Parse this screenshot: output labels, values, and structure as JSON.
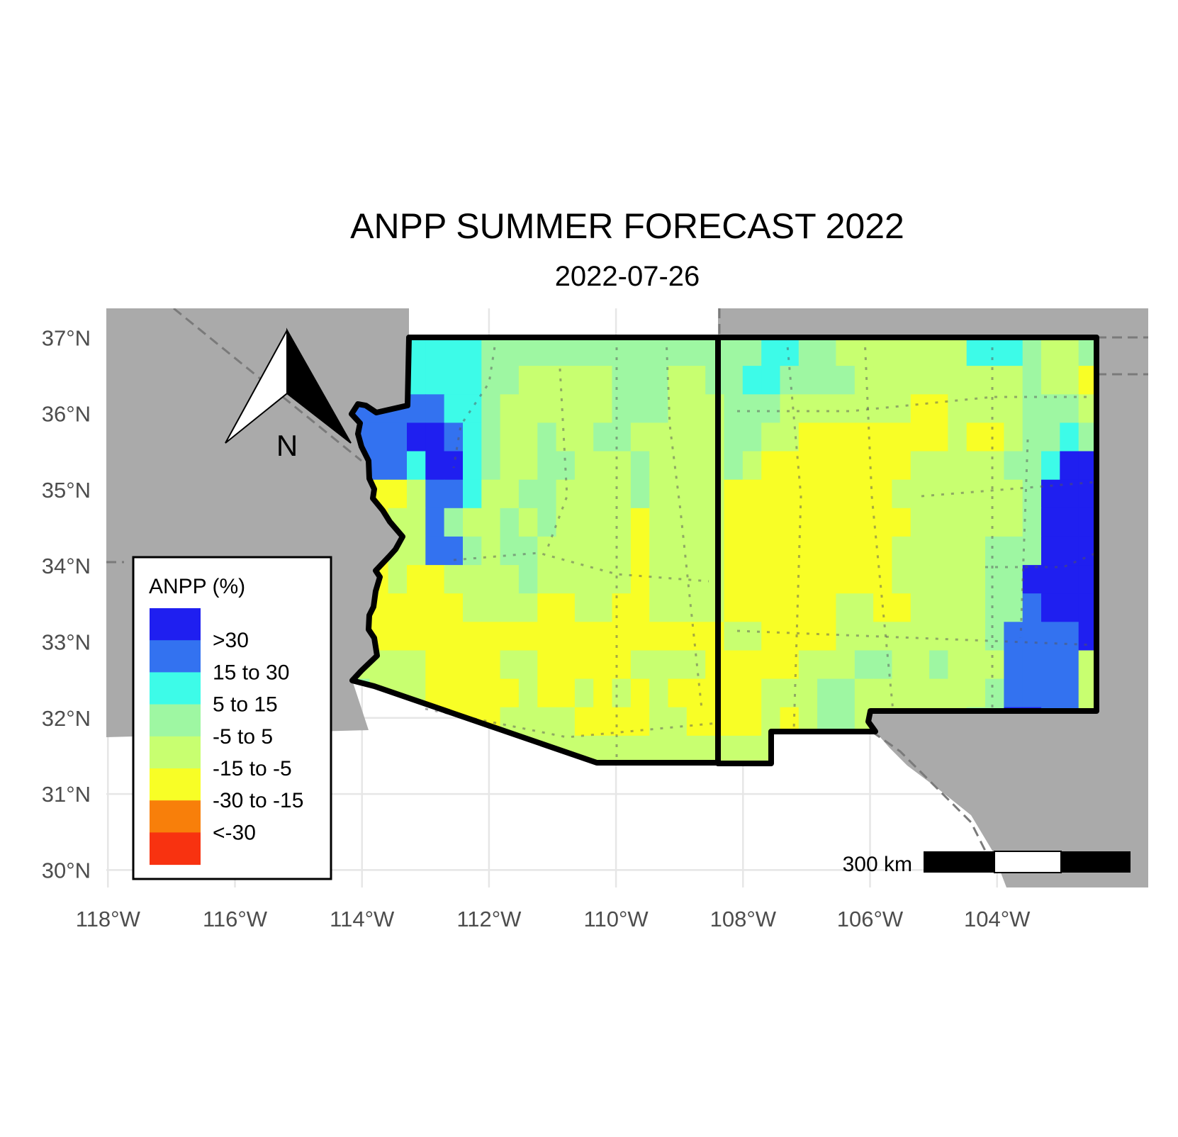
{
  "title": "ANPP SUMMER FORECAST 2022",
  "subtitle": "2022-07-26",
  "map": {
    "background_land_color": "#aaaaaa",
    "grid_color": "#e6e6e6",
    "border_color": "#000000",
    "lon_range": [
      -118.8,
      -102.5
    ],
    "lat_range": [
      29.65,
      37.4
    ],
    "x_ticks": [
      "118°W",
      "116°W",
      "114°W",
      "112°W",
      "110°W",
      "108°W",
      "106°W",
      "104°W"
    ],
    "x_tick_values": [
      -118,
      -116,
      -114,
      -112,
      -110,
      -108,
      -106,
      -104
    ],
    "y_ticks": [
      "37°N",
      "36°N",
      "35°N",
      "34°N",
      "33°N",
      "32°N",
      "31°N",
      "30°N"
    ],
    "y_tick_values": [
      37,
      36,
      35,
      34,
      33,
      32,
      31,
      30
    ]
  },
  "legend": {
    "title": "ANPP (%)",
    "items": [
      {
        "label": ">30",
        "color": "#1f1ff0"
      },
      {
        "label": "15 to 30",
        "color": "#3372f0"
      },
      {
        "label": "5 to 15",
        "color": "#3dfbe8"
      },
      {
        "label": "-5 to 5",
        "color": "#9ef7a2"
      },
      {
        "label": "-15 to -5",
        "color": "#c8ff70"
      },
      {
        "label": "-30 to -15",
        "color": "#f8fe26"
      },
      {
        "label": "<-30",
        "color": "#f87f0a"
      },
      {
        "label": "",
        "color": "#f83210"
      }
    ]
  },
  "north_arrow": {
    "label": "N"
  },
  "scale_bar": {
    "label": "300 km"
  }
}
